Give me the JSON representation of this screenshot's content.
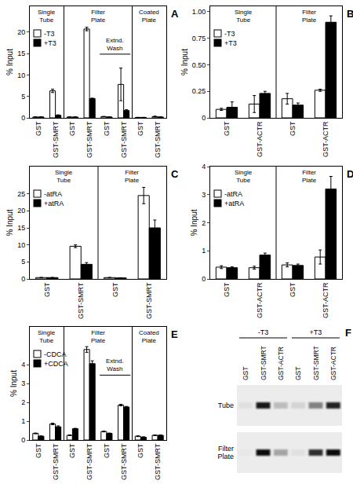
{
  "chart_data": [
    {
      "panel": "A",
      "type": "bar",
      "ylabel": "% Input",
      "categories": [
        "GST",
        "GST-SMRT",
        "GST",
        "GST-SMRT",
        "GST",
        "GST-SMRT",
        "GST",
        "GST-SMRT"
      ],
      "group": [
        "Single Tube",
        "Single Tube",
        "Filter Plate",
        "Filter Plate",
        "Filter Plate",
        "Filter Plate",
        "Coated Plate",
        "Coated Plate"
      ],
      "subgroup": [
        null,
        null,
        null,
        null,
        "Extnd. Wash",
        "Extnd. Wash",
        null,
        null
      ],
      "series": [
        {
          "name": "-T3",
          "color": "#ffffff",
          "values": [
            0.2,
            6.3,
            0.2,
            20.7,
            0.3,
            7.8,
            0.1,
            0.3
          ],
          "error": [
            0.02,
            0.4,
            0.02,
            0.4,
            0.02,
            3.8,
            0.02,
            0.1
          ]
        },
        {
          "name": "+T3",
          "color": "#000000",
          "values": [
            0.2,
            0.6,
            0.2,
            4.5,
            0.2,
            1.7,
            0.1,
            0.2
          ],
          "error": [
            0.02,
            0.1,
            0.02,
            0.1,
            0.02,
            0.2,
            0.02,
            0.02
          ]
        }
      ],
      "ylim": [
        0,
        26
      ],
      "yticks": [
        0,
        5,
        10,
        15,
        20
      ],
      "grid": false,
      "legend": "upper left"
    },
    {
      "panel": "B",
      "type": "bar",
      "ylabel": "% Input",
      "categories": [
        "GST",
        "GST-ACTR",
        "GST",
        "GST-ACTR"
      ],
      "group": [
        "Single Tube",
        "Single Tube",
        "Filter Plate",
        "Filter Plate"
      ],
      "series": [
        {
          "name": "-T3",
          "color": "#ffffff",
          "values": [
            0.08,
            0.13,
            0.18,
            0.26
          ],
          "error": [
            0.01,
            0.08,
            0.05,
            0.01
          ]
        },
        {
          "name": "+T3",
          "color": "#000000",
          "values": [
            0.1,
            0.23,
            0.12,
            0.9
          ],
          "error": [
            0.05,
            0.02,
            0.02,
            0.06
          ]
        }
      ],
      "ylim": [
        0,
        1.05
      ],
      "yticks": [
        0,
        0.25,
        {
          "value": 0.5,
          "label": "0.50"
        },
        0.75,
        {
          "value": 1,
          "label": "1.00"
        }
      ],
      "grid": false,
      "legend": "upper left"
    },
    {
      "panel": "C",
      "type": "bar",
      "ylabel": "% Input",
      "categories": [
        "GST",
        "GST-SMRT",
        "GST",
        "GST-SMRT"
      ],
      "group": [
        "Single Tube",
        "Single Tube",
        "Filter Plate",
        "Filter Plate"
      ],
      "series": [
        {
          "name": "-atRA",
          "color": "#ffffff",
          "values": [
            0.4,
            9.6,
            0.4,
            24.5
          ],
          "error": [
            0.05,
            0.4,
            0.05,
            2.4
          ]
        },
        {
          "name": "+atRA",
          "color": "#000000",
          "values": [
            0.4,
            4.3,
            0.3,
            15.0
          ],
          "error": [
            0.05,
            0.5,
            0.05,
            2.3
          ]
        }
      ],
      "ylim": [
        0,
        33
      ],
      "yticks": [
        0,
        5,
        10,
        15,
        20,
        25
      ],
      "grid": false,
      "legend": "upper left"
    },
    {
      "panel": "D",
      "type": "bar",
      "ylabel": "% Input",
      "categories": [
        "GST",
        "GST-ACTR",
        "GST",
        "GST-ACTR"
      ],
      "group": [
        "Single Tube",
        "Single Tube",
        "Filter Plate",
        "Filter Plate"
      ],
      "series": [
        {
          "name": "-atRA",
          "color": "#ffffff",
          "values": [
            0.42,
            0.4,
            0.5,
            0.78
          ],
          "error": [
            0.05,
            0.05,
            0.07,
            0.25
          ]
        },
        {
          "name": "+atRA",
          "color": "#000000",
          "values": [
            0.4,
            0.85,
            0.48,
            3.2
          ],
          "error": [
            0.03,
            0.07,
            0.05,
            0.45
          ]
        }
      ],
      "ylim": [
        0,
        4
      ],
      "yticks": [
        0,
        1,
        2,
        3,
        4
      ],
      "grid": false,
      "legend": "upper left"
    },
    {
      "panel": "E",
      "type": "bar",
      "ylabel": "% Input",
      "categories": [
        "GST",
        "GST-SMRT",
        "GST",
        "GST-SMRT",
        "GST",
        "GST-SMRT",
        "GST",
        "GST-SMRT"
      ],
      "group": [
        "Single Tube",
        "Single Tube",
        "Filter Plate",
        "Filter Plate",
        "Filter Plate",
        "Filter Plate",
        "Coated Plate",
        "Coated Plate"
      ],
      "subgroup": [
        null,
        null,
        null,
        null,
        "Extnd. Wash",
        "Extnd. Wash",
        null,
        null
      ],
      "series": [
        {
          "name": "-CDCA",
          "color": "#ffffff",
          "values": [
            0.35,
            0.85,
            0.25,
            4.8,
            0.45,
            1.85,
            0.2,
            0.25
          ],
          "error": [
            0.02,
            0.04,
            0.02,
            0.15,
            0.02,
            0.04,
            0.02,
            0.02
          ]
        },
        {
          "name": "+CDCA",
          "color": "#000000",
          "values": [
            0.2,
            0.7,
            0.6,
            4.05,
            0.35,
            1.75,
            0.15,
            0.25
          ],
          "error": [
            0.02,
            0.05,
            0.02,
            0.15,
            0.02,
            0.03,
            0.02,
            0.02
          ]
        }
      ],
      "ylim": [
        0,
        6
      ],
      "yticks": [
        0,
        1,
        2,
        3,
        4
      ],
      "grid": false,
      "legend": "upper left"
    }
  ],
  "gel": {
    "panel": "F",
    "groups": [
      {
        "label": "-T3",
        "lanes": [
          "GST",
          "GST-SMRT",
          "GST-ACTR"
        ]
      },
      {
        "label": "+T3",
        "lanes": [
          "GST",
          "GST-SMRT",
          "GST-ACTR"
        ]
      }
    ],
    "rows": [
      {
        "label": "Tube",
        "intensity": [
          0.05,
          0.9,
          0.2,
          0.1,
          0.45,
          0.85
        ]
      },
      {
        "label": "Filter Plate",
        "intensity": [
          0.02,
          0.95,
          0.3,
          0.05,
          0.8,
          0.95
        ]
      }
    ]
  }
}
